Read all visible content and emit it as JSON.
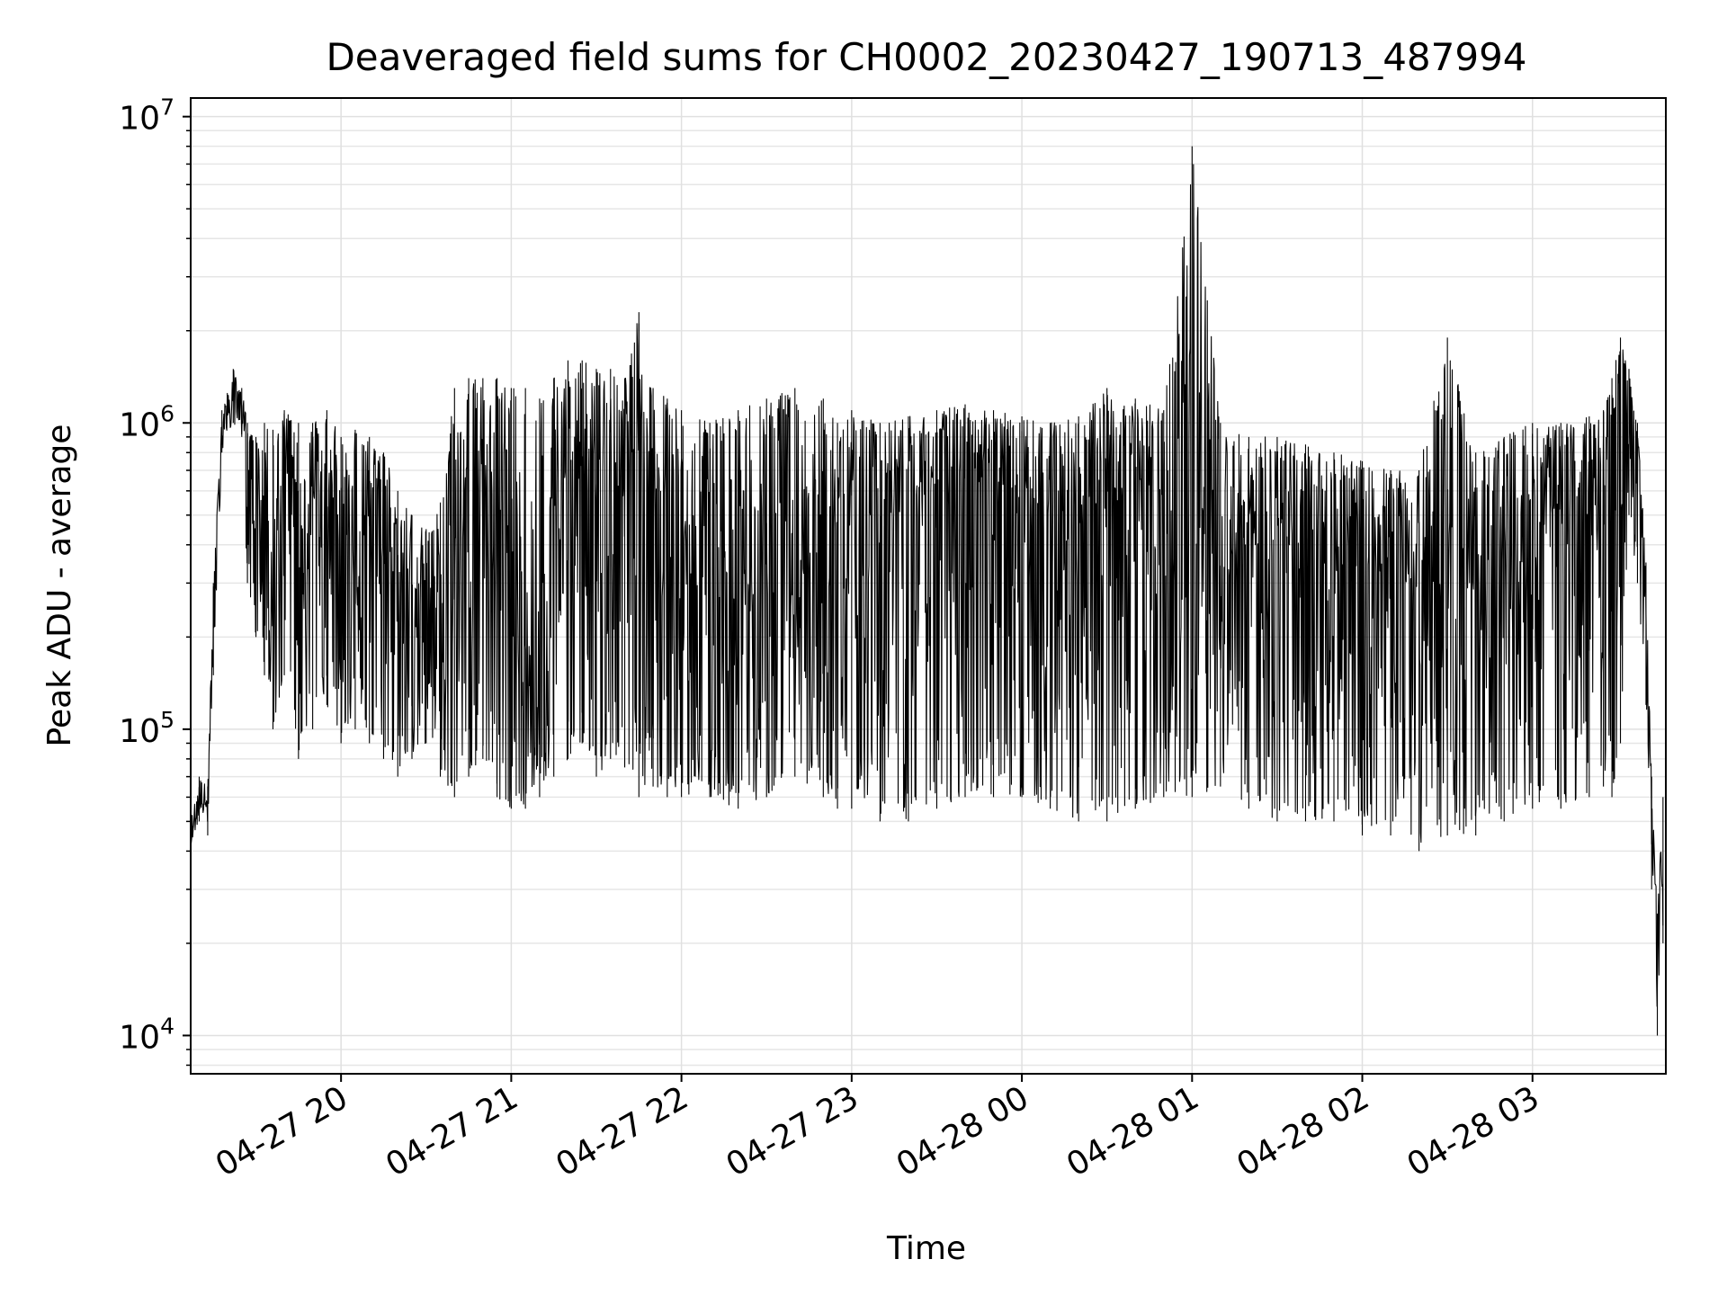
{
  "chart_data": {
    "type": "line",
    "title": "Deaveraged field sums for CH0002_20230427_190713_487994",
    "xlabel": "Time",
    "ylabel": "Peak ADU - average",
    "yscale": "log",
    "ylim": [
      7500,
      11500000
    ],
    "xlim": [
      "2023-04-27 19:07",
      "2023-04-28 03:47"
    ],
    "grid": true,
    "line_color": "#000000",
    "x_ticks": [
      {
        "label": "04-27 20",
        "value": "2023-04-27 20:00"
      },
      {
        "label": "04-27 21",
        "value": "2023-04-27 21:00"
      },
      {
        "label": "04-27 22",
        "value": "2023-04-27 22:00"
      },
      {
        "label": "04-27 23",
        "value": "2023-04-27 23:00"
      },
      {
        "label": "04-28 00",
        "value": "2023-04-28 00:00"
      },
      {
        "label": "04-28 01",
        "value": "2023-04-28 01:00"
      },
      {
        "label": "04-28 02",
        "value": "2023-04-28 02:00"
      },
      {
        "label": "04-28 03",
        "value": "2023-04-28 03:00"
      }
    ],
    "y_ticks": [
      {
        "base": "10",
        "exp": "4",
        "value": 10000
      },
      {
        "base": "10",
        "exp": "5",
        "value": 100000
      },
      {
        "base": "10",
        "exp": "6",
        "value": 1000000
      },
      {
        "base": "10",
        "exp": "7",
        "value": 10000000
      }
    ],
    "series": [
      {
        "x": [
          "2023-04-27 19:07",
          "2023-04-27 19:10",
          "2023-04-27 19:13",
          "2023-04-27 19:15",
          "2023-04-27 19:18",
          "2023-04-27 19:22",
          "2023-04-27 19:25",
          "2023-04-27 19:27",
          "2023-04-27 19:30",
          "2023-04-27 19:33",
          "2023-04-27 19:36",
          "2023-04-27 19:40",
          "2023-04-27 19:45",
          "2023-04-27 19:50",
          "2023-04-27 19:55",
          "2023-04-27 20:00",
          "2023-04-27 20:05",
          "2023-04-27 20:10",
          "2023-04-27 20:15",
          "2023-04-27 20:20",
          "2023-04-27 20:25",
          "2023-04-27 20:30",
          "2023-04-27 20:35",
          "2023-04-27 20:40",
          "2023-04-27 20:45",
          "2023-04-27 20:50",
          "2023-04-27 20:55",
          "2023-04-27 21:00",
          "2023-04-27 21:05",
          "2023-04-27 21:10",
          "2023-04-27 21:15",
          "2023-04-27 21:20",
          "2023-04-27 21:25",
          "2023-04-27 21:30",
          "2023-04-27 21:35",
          "2023-04-27 21:40",
          "2023-04-27 21:45",
          "2023-04-27 21:50",
          "2023-04-27 21:55",
          "2023-04-27 22:00",
          "2023-04-27 22:10",
          "2023-04-27 22:20",
          "2023-04-27 22:30",
          "2023-04-27 22:40",
          "2023-04-27 22:50",
          "2023-04-27 22:55",
          "2023-04-27 23:00",
          "2023-04-27 23:10",
          "2023-04-27 23:20",
          "2023-04-27 23:30",
          "2023-04-27 23:40",
          "2023-04-27 23:50",
          "2023-04-28 00:00",
          "2023-04-28 00:10",
          "2023-04-28 00:20",
          "2023-04-28 00:30",
          "2023-04-28 00:40",
          "2023-04-28 00:50",
          "2023-04-28 01:00",
          "2023-04-28 01:10",
          "2023-04-28 01:20",
          "2023-04-28 01:30",
          "2023-04-28 01:40",
          "2023-04-28 01:50",
          "2023-04-28 02:00",
          "2023-04-28 02:10",
          "2023-04-28 02:20",
          "2023-04-28 02:30",
          "2023-04-28 02:40",
          "2023-04-28 02:50",
          "2023-04-28 03:00",
          "2023-04-28 03:10",
          "2023-04-28 03:20",
          "2023-04-28 03:25",
          "2023-04-28 03:28",
          "2023-04-28 03:31",
          "2023-04-28 03:34",
          "2023-04-28 03:37",
          "2023-04-28 03:40",
          "2023-04-28 03:42",
          "2023-04-28 03:44",
          "2023-04-28 03:46"
        ],
        "y": [
          45000,
          60000,
          55000,
          250000,
          1000000,
          1300000,
          1200000,
          700000,
          550000,
          500000,
          450000,
          550000,
          400000,
          600000,
          550000,
          500000,
          450000,
          400000,
          350000,
          300000,
          250000,
          200000,
          250000,
          300000,
          450000,
          600000,
          550000,
          500000,
          200000,
          150000,
          350000,
          700000,
          800000,
          700000,
          700000,
          600000,
          550000,
          500000,
          450000,
          400000,
          250000,
          300000,
          350000,
          450000,
          450000,
          300000,
          400000,
          450000,
          550000,
          600000,
          650000,
          650000,
          550000,
          500000,
          450000,
          500000,
          600000,
          650000,
          500000,
          450000,
          400000,
          380000,
          400000,
          400000,
          350000,
          300000,
          280000,
          300000,
          320000,
          350000,
          420000,
          450000,
          500000,
          520000,
          900000,
          1500000,
          1300000,
          900000,
          300000,
          60000,
          20000,
          40000
        ],
        "y_hi": [
          50000,
          70000,
          65000,
          300000,
          1100000,
          1500000,
          1300000,
          1000000,
          900000,
          1000000,
          950000,
          1100000,
          1000000,
          1000000,
          1100000,
          900000,
          950000,
          900000,
          800000,
          600000,
          500000,
          450000,
          550000,
          1300000,
          1400000,
          1400000,
          1400000,
          1300000,
          1300000,
          1200000,
          1400000,
          1600000,
          1600000,
          1500000,
          1500000,
          1400000,
          2300000,
          1300000,
          1200000,
          1100000,
          1000000,
          1100000,
          1200000,
          1300000,
          1200000,
          1000000,
          1100000,
          1000000,
          1050000,
          1100000,
          1150000,
          1100000,
          1050000,
          1000000,
          1050000,
          1300000,
          1200000,
          1100000,
          8000000,
          1000000,
          900000,
          900000,
          850000,
          800000,
          750000,
          700000,
          700000,
          1900000,
          800000,
          900000,
          1000000,
          1000000,
          1050000,
          1100000,
          1400000,
          1900000,
          1500000,
          1000000,
          350000,
          70000,
          25000,
          60000
        ],
        "y_lo": [
          42000,
          50000,
          45000,
          150000,
          800000,
          1000000,
          900000,
          300000,
          200000,
          150000,
          100000,
          150000,
          80000,
          100000,
          120000,
          90000,
          100000,
          90000,
          80000,
          70000,
          80000,
          90000,
          70000,
          60000,
          70000,
          80000,
          60000,
          55000,
          55000,
          60000,
          70000,
          80000,
          90000,
          70000,
          80000,
          75000,
          60000,
          65000,
          60000,
          60000,
          60000,
          55000,
          60000,
          70000,
          60000,
          55000,
          55000,
          50000,
          50000,
          55000,
          60000,
          60000,
          60000,
          55000,
          50000,
          50000,
          55000,
          60000,
          60000,
          65000,
          55000,
          50000,
          50000,
          50000,
          45000,
          45000,
          40000,
          45000,
          45000,
          50000,
          55000,
          55000,
          60000,
          65000,
          60000,
          90000,
          500000,
          300000,
          120000,
          30000,
          10000,
          20000
        ]
      }
    ]
  }
}
